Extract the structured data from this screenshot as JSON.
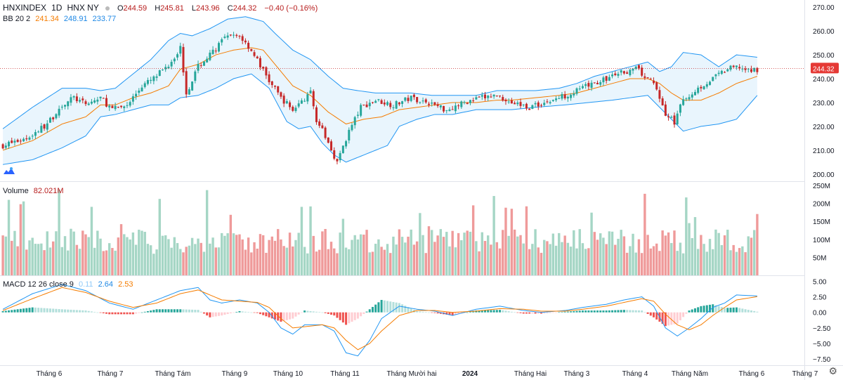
{
  "header": {
    "symbol": "HNXINDEX",
    "interval": "1D",
    "exchange": "HNX NY",
    "ohlc": [
      {
        "label": "O",
        "value": "244.59"
      },
      {
        "label": "H",
        "value": "245.81"
      },
      {
        "label": "L",
        "value": "243.96"
      },
      {
        "label": "C",
        "value": "244.32"
      }
    ],
    "change": "−0.40 (−0.16%)",
    "bb_label": "BB 20 2",
    "bb_basis": "241.34",
    "bb_upper": "248.91",
    "bb_lower": "233.77",
    "volume_label": "Volume",
    "volume_value": "82.021M",
    "macd_label": "MACD 12 26 close 9",
    "macd_hist": "0.11",
    "macd_line": "2.64",
    "macd_signal": "2.53"
  },
  "colors": {
    "up": "#26a69a",
    "down": "#c62828",
    "vol_up": "#a5d6c5",
    "vol_down": "#ef9a9a",
    "bb_fill": "#e3f2fd",
    "bb_line": "#2196f3",
    "basis": "#f57c00",
    "macd": "#2196f3",
    "signal": "#f57c00"
  },
  "chart_data": [
    {
      "type": "candlestick",
      "panel": "price",
      "y_ticks": [
        "270.00",
        "260.00",
        "250.00",
        "240.00",
        "230.00",
        "220.00",
        "210.00",
        "200.00"
      ],
      "ylim": [
        197,
        273
      ],
      "last_price_label": "244.32",
      "close_path": [
        [
          0,
          212
        ],
        [
          8,
          215
        ],
        [
          15,
          221
        ],
        [
          20,
          229
        ],
        [
          24,
          232
        ],
        [
          28,
          229
        ],
        [
          33,
          232
        ],
        [
          37,
          227
        ],
        [
          42,
          229
        ],
        [
          47,
          237
        ],
        [
          51,
          240
        ],
        [
          56,
          246
        ],
        [
          60,
          253
        ],
        [
          62,
          234
        ],
        [
          66,
          245
        ],
        [
          70,
          250
        ],
        [
          75,
          257
        ],
        [
          80,
          258
        ],
        [
          84,
          252
        ],
        [
          90,
          239
        ],
        [
          94,
          232
        ],
        [
          98,
          227
        ],
        [
          104,
          234
        ],
        [
          106,
          223
        ],
        [
          110,
          213
        ],
        [
          113,
          205
        ],
        [
          117,
          218
        ],
        [
          121,
          228
        ],
        [
          126,
          231
        ],
        [
          132,
          229
        ],
        [
          138,
          232
        ],
        [
          144,
          230
        ],
        [
          150,
          227
        ],
        [
          156,
          230
        ],
        [
          162,
          232
        ],
        [
          167,
          233
        ],
        [
          172,
          230
        ],
        [
          178,
          228
        ],
        [
          186,
          231
        ],
        [
          192,
          234
        ],
        [
          198,
          237
        ],
        [
          204,
          240
        ],
        [
          210,
          243
        ],
        [
          214,
          244
        ],
        [
          218,
          240
        ],
        [
          221,
          236
        ],
        [
          224,
          225
        ],
        [
          227,
          222
        ],
        [
          230,
          231
        ],
        [
          235,
          236
        ],
        [
          240,
          240
        ],
        [
          245,
          244
        ],
        [
          249,
          245
        ],
        [
          252,
          243
        ],
        [
          255,
          244
        ]
      ],
      "bb_upper_path": [
        [
          0,
          219
        ],
        [
          10,
          228
        ],
        [
          20,
          236
        ],
        [
          28,
          236
        ],
        [
          33,
          235
        ],
        [
          38,
          236
        ],
        [
          44,
          242
        ],
        [
          50,
          248
        ],
        [
          56,
          256
        ],
        [
          60,
          259
        ],
        [
          64,
          258
        ],
        [
          70,
          261
        ],
        [
          76,
          265
        ],
        [
          82,
          266
        ],
        [
          88,
          264
        ],
        [
          92,
          259
        ],
        [
          98,
          252
        ],
        [
          104,
          248
        ],
        [
          110,
          241
        ],
        [
          115,
          236
        ],
        [
          120,
          235
        ],
        [
          126,
          234
        ],
        [
          132,
          234
        ],
        [
          138,
          234
        ],
        [
          145,
          233
        ],
        [
          150,
          233
        ],
        [
          160,
          233
        ],
        [
          167,
          235
        ],
        [
          172,
          235
        ],
        [
          180,
          235
        ],
        [
          188,
          236
        ],
        [
          194,
          238
        ],
        [
          200,
          241
        ],
        [
          206,
          243
        ],
        [
          212,
          245
        ],
        [
          218,
          247
        ],
        [
          222,
          243
        ],
        [
          226,
          245
        ],
        [
          230,
          251
        ],
        [
          236,
          250
        ],
        [
          242,
          245
        ],
        [
          248,
          250
        ],
        [
          255,
          249
        ]
      ],
      "bb_lower_path": [
        [
          0,
          204
        ],
        [
          10,
          206
        ],
        [
          20,
          211
        ],
        [
          28,
          216
        ],
        [
          33,
          224
        ],
        [
          38,
          225
        ],
        [
          44,
          227
        ],
        [
          50,
          229
        ],
        [
          56,
          229
        ],
        [
          60,
          232
        ],
        [
          66,
          233
        ],
        [
          72,
          236
        ],
        [
          78,
          240
        ],
        [
          84,
          242
        ],
        [
          90,
          236
        ],
        [
          96,
          222
        ],
        [
          100,
          219
        ],
        [
          104,
          220
        ],
        [
          108,
          213
        ],
        [
          112,
          208
        ],
        [
          116,
          205
        ],
        [
          120,
          207
        ],
        [
          126,
          210
        ],
        [
          130,
          212
        ],
        [
          134,
          220
        ],
        [
          140,
          223
        ],
        [
          146,
          225
        ],
        [
          152,
          225
        ],
        [
          160,
          227
        ],
        [
          167,
          227
        ],
        [
          172,
          227
        ],
        [
          180,
          228
        ],
        [
          190,
          229
        ],
        [
          198,
          230
        ],
        [
          206,
          231
        ],
        [
          212,
          232
        ],
        [
          218,
          233
        ],
        [
          222,
          228
        ],
        [
          226,
          223
        ],
        [
          230,
          218
        ],
        [
          236,
          220
        ],
        [
          242,
          221
        ],
        [
          248,
          223
        ],
        [
          255,
          233
        ]
      ],
      "basis_path": [
        [
          0,
          210
        ],
        [
          10,
          214
        ],
        [
          20,
          221
        ],
        [
          28,
          224
        ],
        [
          33,
          229
        ],
        [
          38,
          229
        ],
        [
          44,
          232
        ],
        [
          50,
          234
        ],
        [
          56,
          237
        ],
        [
          60,
          244
        ],
        [
          66,
          246
        ],
        [
          72,
          250
        ],
        [
          78,
          252
        ],
        [
          84,
          253
        ],
        [
          88,
          252
        ],
        [
          92,
          246
        ],
        [
          98,
          237
        ],
        [
          104,
          233
        ],
        [
          110,
          226
        ],
        [
          116,
          221
        ],
        [
          122,
          223
        ],
        [
          128,
          224
        ],
        [
          134,
          227
        ],
        [
          140,
          228
        ],
        [
          146,
          229
        ],
        [
          152,
          230
        ],
        [
          160,
          230
        ],
        [
          167,
          231
        ],
        [
          172,
          231
        ],
        [
          180,
          232
        ],
        [
          188,
          233
        ],
        [
          194,
          234
        ],
        [
          200,
          236
        ],
        [
          206,
          238
        ],
        [
          212,
          240
        ],
        [
          218,
          240
        ],
        [
          222,
          238
        ],
        [
          226,
          234
        ],
        [
          230,
          231
        ],
        [
          236,
          231
        ],
        [
          242,
          234
        ],
        [
          248,
          238
        ],
        [
          255,
          241
        ]
      ]
    },
    {
      "type": "bar",
      "panel": "volume",
      "y_ticks": [
        "250M",
        "200M",
        "150M",
        "100M",
        "50M"
      ],
      "ylim": [
        0,
        250
      ]
    },
    {
      "type": "line",
      "panel": "macd",
      "y_ticks": [
        "5.00",
        "2.50",
        "0.00",
        "−2.50",
        "−5.00",
        "−7.50"
      ],
      "ylim": [
        -8.5,
        5.5
      ],
      "macd_path": [
        [
          0,
          0.5
        ],
        [
          10,
          3.0
        ],
        [
          20,
          4.5
        ],
        [
          28,
          3.5
        ],
        [
          36,
          1.5
        ],
        [
          44,
          0.5
        ],
        [
          52,
          2.0
        ],
        [
          60,
          3.5
        ],
        [
          66,
          4.0
        ],
        [
          70,
          2.0
        ],
        [
          74,
          1.5
        ],
        [
          80,
          2.0
        ],
        [
          86,
          1.5
        ],
        [
          90,
          0
        ],
        [
          94,
          -2.5
        ],
        [
          98,
          -3.5
        ],
        [
          102,
          -2.0
        ],
        [
          108,
          -2.0
        ],
        [
          112,
          -3.0
        ],
        [
          116,
          -6.5
        ],
        [
          120,
          -7.0
        ],
        [
          124,
          -4.5
        ],
        [
          128,
          -1.0
        ],
        [
          134,
          1.0
        ],
        [
          140,
          0.5
        ],
        [
          146,
          0.2
        ],
        [
          152,
          -0.5
        ],
        [
          160,
          0.5
        ],
        [
          168,
          1.0
        ],
        [
          176,
          0.3
        ],
        [
          182,
          0
        ],
        [
          190,
          0.3
        ],
        [
          196,
          0.8
        ],
        [
          204,
          1.3
        ],
        [
          210,
          2.0
        ],
        [
          216,
          2.5
        ],
        [
          220,
          1.0
        ],
        [
          224,
          -2.5
        ],
        [
          228,
          -3.8
        ],
        [
          232,
          -2.5
        ],
        [
          236,
          -1.0
        ],
        [
          240,
          0.8
        ],
        [
          244,
          1.5
        ],
        [
          248,
          2.8
        ],
        [
          255,
          2.64
        ]
      ],
      "signal_path": [
        [
          0,
          0.3
        ],
        [
          10,
          2.2
        ],
        [
          20,
          4.0
        ],
        [
          28,
          3.2
        ],
        [
          36,
          1.8
        ],
        [
          44,
          0.8
        ],
        [
          52,
          1.5
        ],
        [
          60,
          3.0
        ],
        [
          66,
          3.6
        ],
        [
          70,
          2.8
        ],
        [
          74,
          2.0
        ],
        [
          80,
          1.8
        ],
        [
          86,
          1.6
        ],
        [
          90,
          0.8
        ],
        [
          94,
          -1.0
        ],
        [
          98,
          -2.5
        ],
        [
          102,
          -2.3
        ],
        [
          108,
          -2.0
        ],
        [
          112,
          -2.5
        ],
        [
          116,
          -4.5
        ],
        [
          120,
          -6.0
        ],
        [
          124,
          -5.0
        ],
        [
          128,
          -3.0
        ],
        [
          134,
          -0.5
        ],
        [
          140,
          0.3
        ],
        [
          146,
          0.3
        ],
        [
          152,
          0
        ],
        [
          160,
          0.2
        ],
        [
          168,
          0.6
        ],
        [
          176,
          0.5
        ],
        [
          182,
          0.2
        ],
        [
          190,
          0.2
        ],
        [
          196,
          0.5
        ],
        [
          204,
          1.0
        ],
        [
          210,
          1.6
        ],
        [
          216,
          2.2
        ],
        [
          220,
          1.8
        ],
        [
          224,
          -0.3
        ],
        [
          228,
          -2.0
        ],
        [
          232,
          -2.8
        ],
        [
          236,
          -2.0
        ],
        [
          240,
          -0.5
        ],
        [
          244,
          0.8
        ],
        [
          248,
          2.0
        ],
        [
          255,
          2.53
        ]
      ]
    }
  ],
  "x_axis_labels": [
    "Tháng 6",
    "Tháng 7",
    "Tháng Tám",
    "Tháng 9",
    "Tháng 10",
    "Tháng 11",
    "Tháng Mười hai",
    "2024",
    "Tháng Hai",
    "Tháng 3",
    "Tháng 4",
    "Tháng Năm",
    "Tháng 6",
    "Tháng 7"
  ],
  "icons": {
    "settings": "gear-icon",
    "logo": "tradingview-logo-icon"
  }
}
